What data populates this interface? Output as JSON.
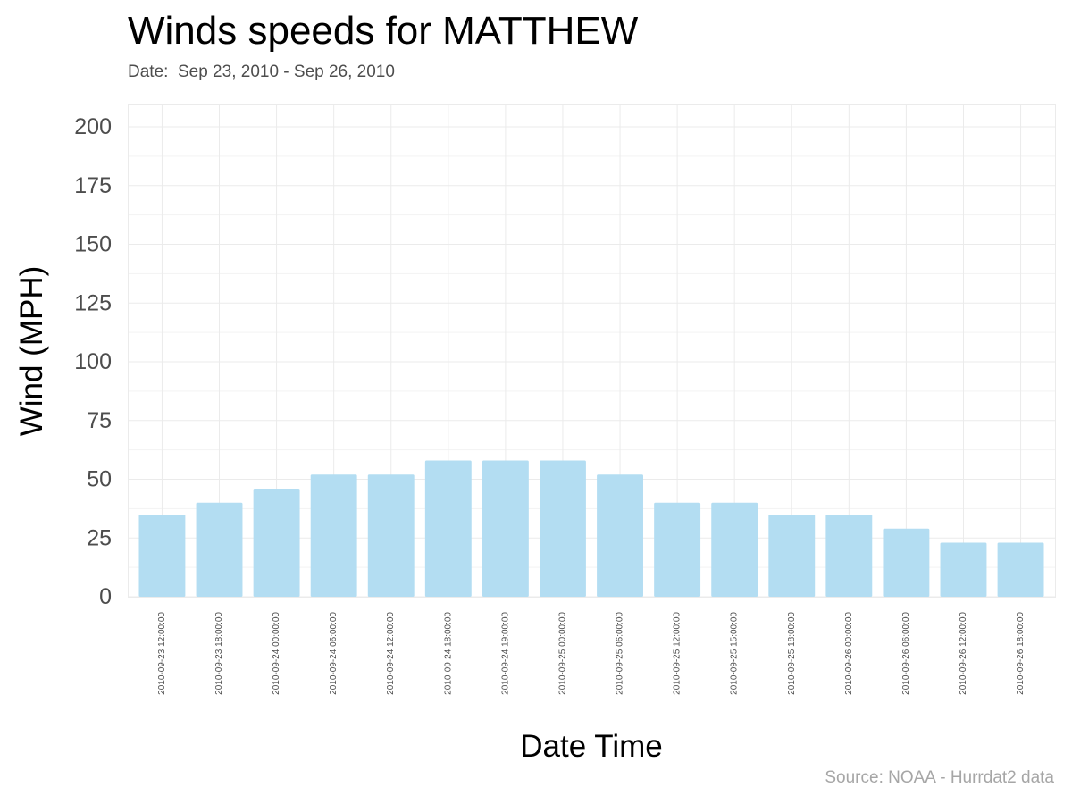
{
  "header": {
    "title": "Winds speeds for MATTHEW",
    "subtitle": "Date:  Sep 23, 2010 - Sep 26, 2010"
  },
  "footer": {
    "source": "Source: NOAA - Hurrdat2 data"
  },
  "colors": {
    "bar": "#b3ddf2",
    "grid": "#ebebeb"
  },
  "chart_data": {
    "type": "bar",
    "title": "Winds speeds for MATTHEW",
    "subtitle": "Date:  Sep 23, 2010 - Sep 26, 2010",
    "xlabel": "Date Time",
    "ylabel": "Wind (MPH)",
    "categories": [
      "2010-09-23 12:00:00",
      "2010-09-23 18:00:00",
      "2010-09-24 00:00:00",
      "2010-09-24 06:00:00",
      "2010-09-24 12:00:00",
      "2010-09-24 18:00:00",
      "2010-09-24 19:00:00",
      "2010-09-25 00:00:00",
      "2010-09-25 06:00:00",
      "2010-09-25 12:00:00",
      "2010-09-25 15:00:00",
      "2010-09-25 18:00:00",
      "2010-09-26 00:00:00",
      "2010-09-26 06:00:00",
      "2010-09-26 12:00:00",
      "2010-09-26 18:00:00"
    ],
    "values": [
      35,
      40,
      46,
      52,
      52,
      58,
      58,
      58,
      52,
      40,
      40,
      35,
      35,
      29,
      23,
      23
    ],
    "ylim": [
      0,
      200
    ],
    "yticks": [
      0,
      25,
      50,
      75,
      100,
      125,
      150,
      175,
      200
    ],
    "grid": true,
    "legend": "none",
    "source": "Source: NOAA - Hurrdat2 data"
  }
}
